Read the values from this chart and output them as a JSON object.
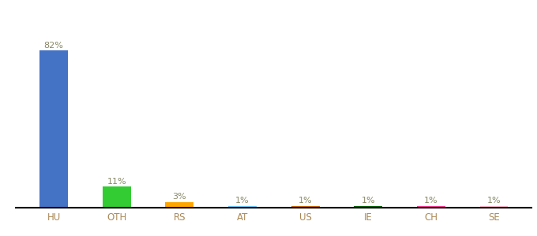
{
  "categories": [
    "HU",
    "OTH",
    "RS",
    "AT",
    "US",
    "IE",
    "CH",
    "SE"
  ],
  "values": [
    82,
    11,
    3,
    1,
    1,
    1,
    1,
    1
  ],
  "labels": [
    "82%",
    "11%",
    "3%",
    "1%",
    "1%",
    "1%",
    "1%",
    "1%"
  ],
  "bar_colors": [
    "#4472C4",
    "#33CC33",
    "#FFA500",
    "#66CCFF",
    "#CC6600",
    "#006600",
    "#FF3399",
    "#FFB3CC"
  ],
  "title": "",
  "background_color": "#ffffff",
  "label_fontsize": 8,
  "tick_fontsize": 8.5,
  "label_color": "#888866",
  "tick_color": "#AA8855",
  "bar_width": 0.45
}
